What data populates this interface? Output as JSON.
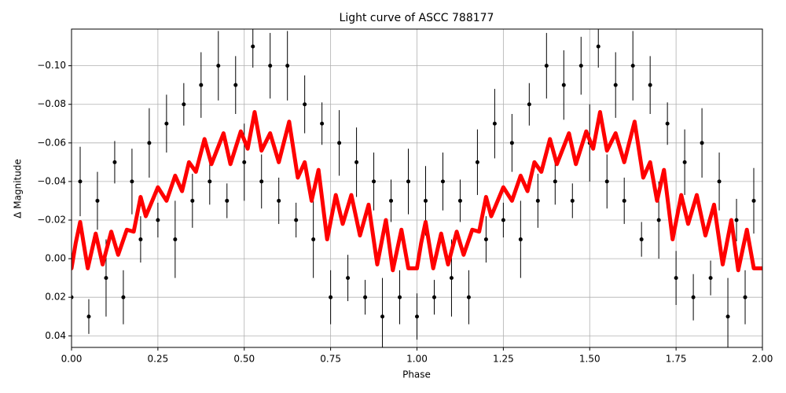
{
  "chart_data": {
    "type": "scatter",
    "title": "Light curve of ASCC 788177",
    "x_label": "Phase",
    "y_label": "Δ Magnitude",
    "xlim": [
      0,
      2
    ],
    "ylim": [
      0.046,
      -0.119
    ],
    "xticks": [
      {
        "value": 0,
        "label": "0.00"
      },
      {
        "value": 0.25,
        "label": "0.25"
      },
      {
        "value": 0.5,
        "label": "0.50"
      },
      {
        "value": 0.75,
        "label": "0.75"
      },
      {
        "value": 1,
        "label": "1.00"
      },
      {
        "value": 1.25,
        "label": "1.25"
      },
      {
        "value": 1.5,
        "label": "1.50"
      },
      {
        "value": 1.75,
        "label": "1.75"
      },
      {
        "value": 2,
        "label": "2.00"
      }
    ],
    "yticks": [
      {
        "value": -0.1,
        "label": "−0.10"
      },
      {
        "value": -0.08,
        "label": "−0.08"
      },
      {
        "value": -0.06,
        "label": "−0.06"
      },
      {
        "value": -0.04,
        "label": "−0.04"
      },
      {
        "value": -0.02,
        "label": "−0.02"
      },
      {
        "value": 0,
        "label": "0.00"
      },
      {
        "value": 0.02,
        "label": "0.02"
      },
      {
        "value": 0.04,
        "label": "0.04"
      }
    ],
    "grid": true,
    "points": {
      "color": "#000000",
      "x": [
        0,
        0.025,
        0.05,
        0.075,
        0.1,
        0.125,
        0.15,
        0.175,
        0.2,
        0.225,
        0.25,
        0.275,
        0.3,
        0.325,
        0.35,
        0.375,
        0.4,
        0.425,
        0.45,
        0.475,
        0.5,
        0.525,
        0.55,
        0.575,
        0.6,
        0.625,
        0.65,
        0.675,
        0.7,
        0.725,
        0.75,
        0.775,
        0.8,
        0.825,
        0.85,
        0.875,
        0.9,
        0.925,
        0.95,
        0.975,
        1,
        1.025,
        1.05,
        1.075,
        1.1,
        1.125,
        1.15,
        1.175,
        1.2,
        1.225,
        1.25,
        1.275,
        1.3,
        1.325,
        1.35,
        1.375,
        1.4,
        1.425,
        1.45,
        1.475,
        1.5,
        1.525,
        1.55,
        1.575,
        1.6,
        1.625,
        1.65,
        1.675,
        1.7,
        1.725,
        1.75,
        1.775,
        1.8,
        1.825,
        1.85,
        1.875,
        1.9,
        1.925,
        1.95,
        1.975
      ],
      "values": [
        0.02,
        -0.04,
        0.03,
        -0.03,
        0.01,
        -0.05,
        0.02,
        -0.04,
        -0.01,
        -0.06,
        -0.02,
        -0.07,
        -0.01,
        -0.08,
        -0.03,
        -0.09,
        -0.04,
        -0.1,
        -0.03,
        -0.09,
        -0.05,
        -0.11,
        -0.04,
        -0.1,
        -0.03,
        -0.1,
        -0.02,
        -0.08,
        -0.01,
        -0.07,
        0.02,
        -0.06,
        0.01,
        -0.05,
        0.02,
        -0.04,
        0.03,
        -0.03,
        0.02,
        -0.04,
        0.03,
        -0.03,
        0.02,
        -0.04,
        0.01,
        -0.03,
        0.02,
        -0.05,
        -0.01,
        -0.07,
        -0.02,
        -0.06,
        -0.01,
        -0.08,
        -0.03,
        -0.1,
        -0.04,
        -0.09,
        -0.03,
        -0.1,
        -0.06,
        -0.11,
        -0.04,
        -0.09,
        -0.03,
        -0.1,
        -0.01,
        -0.09,
        -0.02,
        -0.07,
        0.01,
        -0.05,
        0.02,
        -0.06,
        0.01,
        -0.04,
        0.03,
        -0.02,
        0.02,
        -0.03
      ],
      "errors": [
        0.012,
        0.018,
        0.009,
        0.015,
        0.02,
        0.011,
        0.014,
        0.017,
        0.012,
        0.018,
        0.009,
        0.015,
        0.02,
        0.011,
        0.014,
        0.017,
        0.012,
        0.018,
        0.009,
        0.015,
        0.02,
        0.011,
        0.014,
        0.017,
        0.012,
        0.018,
        0.009,
        0.015,
        0.02,
        0.011,
        0.014,
        0.017,
        0.012,
        0.018,
        0.009,
        0.015,
        0.02,
        0.011,
        0.014,
        0.017,
        0.012,
        0.018,
        0.009,
        0.015,
        0.02,
        0.011,
        0.014,
        0.017,
        0.012,
        0.018,
        0.009,
        0.015,
        0.02,
        0.011,
        0.014,
        0.017,
        0.012,
        0.018,
        0.009,
        0.015,
        0.02,
        0.011,
        0.014,
        0.017,
        0.012,
        0.018,
        0.009,
        0.015,
        0.02,
        0.011,
        0.014,
        0.017,
        0.012,
        0.018,
        0.009,
        0.015,
        0.02,
        0.011,
        0.014,
        0.017
      ]
    },
    "model": {
      "color": "#ff0000",
      "x": [
        0,
        0.012,
        0.025,
        0.035,
        0.047,
        0.07,
        0.09,
        0.115,
        0.135,
        0.16,
        0.18,
        0.2,
        0.215,
        0.25,
        0.275,
        0.3,
        0.32,
        0.34,
        0.36,
        0.385,
        0.405,
        0.44,
        0.46,
        0.49,
        0.51,
        0.53,
        0.55,
        0.575,
        0.6,
        0.63,
        0.655,
        0.675,
        0.695,
        0.715,
        0.74,
        0.765,
        0.785,
        0.81,
        0.835,
        0.86,
        0.885,
        0.91,
        0.93,
        0.955,
        0.975,
        1,
        1.012,
        1.025,
        1.035,
        1.047,
        1.07,
        1.09,
        1.115,
        1.135,
        1.16,
        1.18,
        1.2,
        1.215,
        1.25,
        1.275,
        1.3,
        1.32,
        1.34,
        1.36,
        1.385,
        1.405,
        1.44,
        1.46,
        1.49,
        1.51,
        1.53,
        1.55,
        1.575,
        1.6,
        1.63,
        1.655,
        1.675,
        1.695,
        1.715,
        1.74,
        1.765,
        1.785,
        1.81,
        1.835,
        1.86,
        1.885,
        1.91,
        1.93,
        1.955,
        1.975,
        2
      ],
      "values": [
        0.005,
        -0.008,
        -0.019,
        -0.008,
        0.005,
        -0.013,
        0.003,
        -0.014,
        -0.002,
        -0.015,
        -0.014,
        -0.032,
        -0.022,
        -0.037,
        -0.03,
        -0.043,
        -0.035,
        -0.05,
        -0.045,
        -0.062,
        -0.049,
        -0.065,
        -0.049,
        -0.066,
        -0.057,
        -0.076,
        -0.056,
        -0.065,
        -0.05,
        -0.071,
        -0.042,
        -0.05,
        -0.03,
        -0.046,
        -0.01,
        -0.033,
        -0.018,
        -0.033,
        -0.012,
        -0.028,
        0.003,
        -0.02,
        0.006,
        -0.015,
        0.005,
        0.005,
        -0.008,
        -0.019,
        -0.008,
        0.005,
        -0.013,
        0.003,
        -0.014,
        -0.002,
        -0.015,
        -0.014,
        -0.032,
        -0.022,
        -0.037,
        -0.03,
        -0.043,
        -0.035,
        -0.05,
        -0.045,
        -0.062,
        -0.049,
        -0.065,
        -0.049,
        -0.066,
        -0.057,
        -0.076,
        -0.056,
        -0.065,
        -0.05,
        -0.071,
        -0.042,
        -0.05,
        -0.03,
        -0.046,
        -0.01,
        -0.033,
        -0.018,
        -0.033,
        -0.012,
        -0.028,
        0.003,
        -0.02,
        0.006,
        -0.015,
        0.005,
        0.005
      ]
    }
  }
}
